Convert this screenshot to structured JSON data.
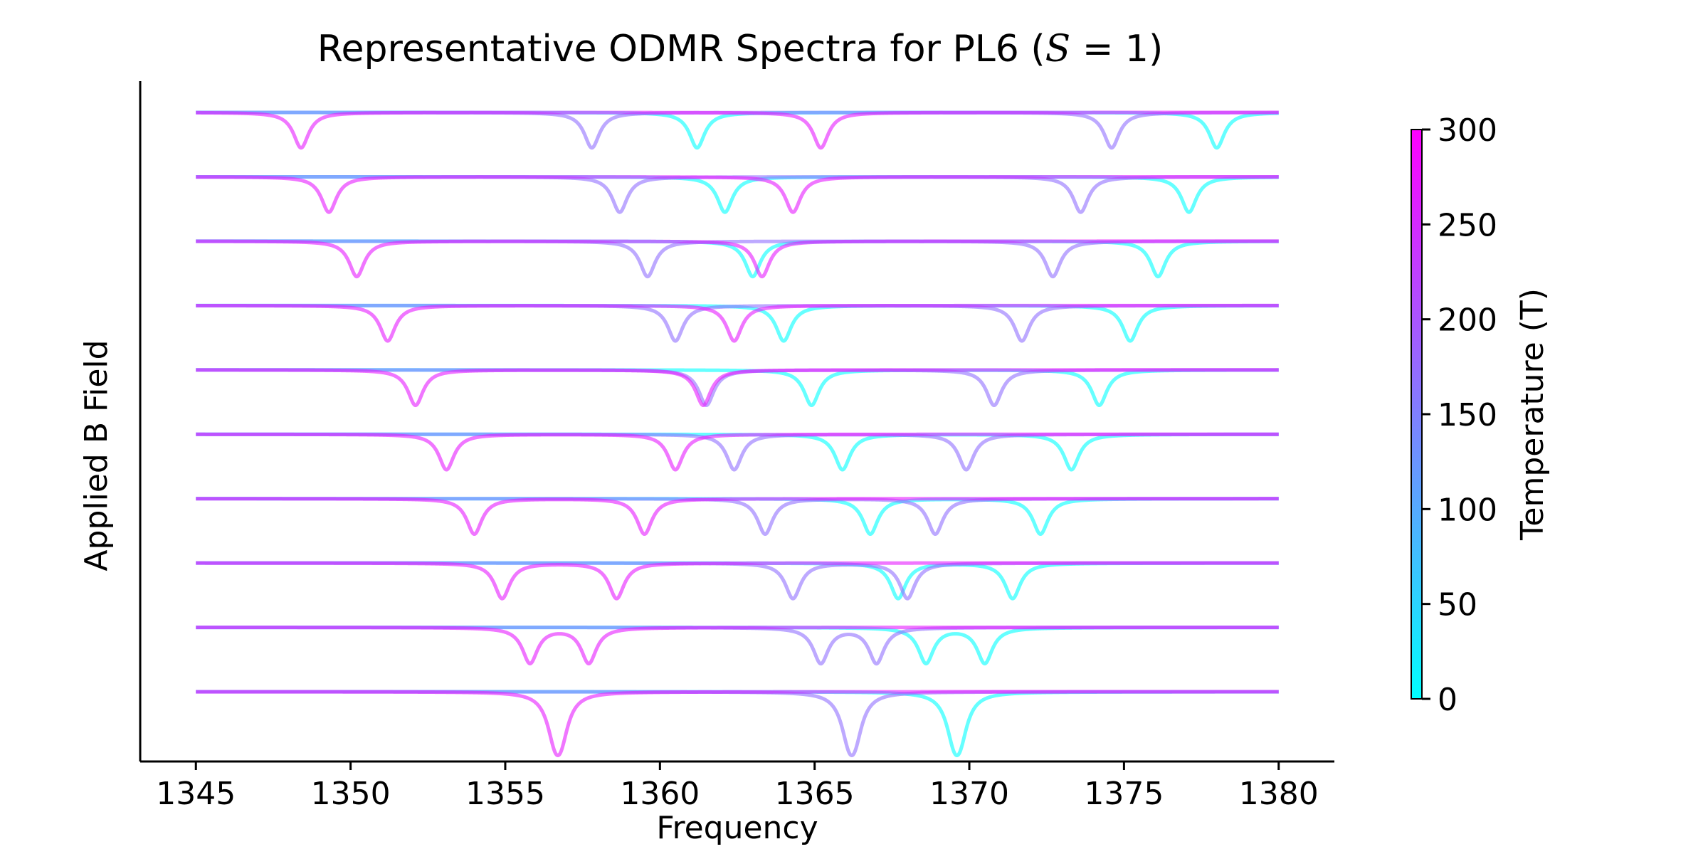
{
  "chart_data": {
    "type": "line",
    "title_prefix": "Representative ODMR Spectra for PL6 (",
    "title_symbol": "S",
    "title_suffix": " = 1)",
    "xlabel": "Frequency",
    "ylabel": "Applied B Field",
    "xlim": [
      1343.2,
      1381.8
    ],
    "x_start": 1345,
    "x_end": 1380,
    "xticks": [
      1345,
      1350,
      1355,
      1360,
      1365,
      1370,
      1375,
      1380
    ],
    "xtick_labels": [
      "1345",
      "1350",
      "1355",
      "1360",
      "1365",
      "1370",
      "1375",
      "1380"
    ],
    "dip_width": 0.3,
    "dip_depth": 0.55,
    "colorbar": {
      "label": "Temperature (T)",
      "min": 0,
      "max": 300,
      "ticks": [
        0,
        50,
        100,
        150,
        200,
        250,
        300
      ],
      "tick_labels": [
        "0",
        "50",
        "100",
        "150",
        "200",
        "250",
        "300"
      ],
      "cmap_start": "#00ffff",
      "cmap_end": "#ff00ff"
    },
    "series": [
      {
        "temps": [
          0,
          170,
          270
        ],
        "dips": {
          "0": [
            1369.7,
            1369.5
          ],
          "170": [
            1366.1,
            1366.3
          ],
          "270": [
            1356.8,
            1356.6
          ]
        }
      },
      {
        "temps": [
          0,
          170,
          270
        ],
        "dips": {
          "0": [
            1368.6,
            1370.5
          ],
          "170": [
            1365.2,
            1367.0
          ],
          "270": [
            1355.8,
            1357.7
          ]
        }
      },
      {
        "temps": [
          0,
          170,
          270
        ],
        "dips": {
          "0": [
            1367.7,
            1371.4
          ],
          "170": [
            1364.3,
            1368.0
          ],
          "270": [
            1354.9,
            1358.6
          ]
        }
      },
      {
        "temps": [
          0,
          170,
          270
        ],
        "dips": {
          "0": [
            1366.8,
            1372.3
          ],
          "170": [
            1363.4,
            1368.9
          ],
          "270": [
            1354.0,
            1359.5
          ]
        }
      },
      {
        "temps": [
          0,
          170,
          270
        ],
        "dips": {
          "0": [
            1365.9,
            1373.3
          ],
          "170": [
            1362.4,
            1369.9
          ],
          "270": [
            1353.1,
            1360.5
          ]
        }
      },
      {
        "temps": [
          0,
          170,
          270
        ],
        "dips": {
          "0": [
            1364.9,
            1374.2
          ],
          "170": [
            1361.5,
            1370.8
          ],
          "270": [
            1352.1,
            1361.4
          ]
        }
      },
      {
        "temps": [
          0,
          170,
          270
        ],
        "dips": {
          "0": [
            1364.0,
            1375.2
          ],
          "170": [
            1360.5,
            1371.7
          ],
          "270": [
            1351.2,
            1362.4
          ]
        }
      },
      {
        "temps": [
          0,
          170,
          270
        ],
        "dips": {
          "0": [
            1363.0,
            1376.1
          ],
          "170": [
            1359.6,
            1372.7
          ],
          "270": [
            1350.2,
            1363.3
          ]
        }
      },
      {
        "temps": [
          0,
          170,
          270
        ],
        "dips": {
          "0": [
            1362.1,
            1377.1
          ],
          "170": [
            1358.7,
            1373.6
          ],
          "270": [
            1349.3,
            1364.3
          ]
        }
      },
      {
        "temps": [
          0,
          170,
          270
        ],
        "dips": {
          "0": [
            1361.2,
            1378.0
          ],
          "170": [
            1357.8,
            1374.6
          ],
          "270": [
            1348.4,
            1365.2
          ]
        }
      }
    ]
  }
}
